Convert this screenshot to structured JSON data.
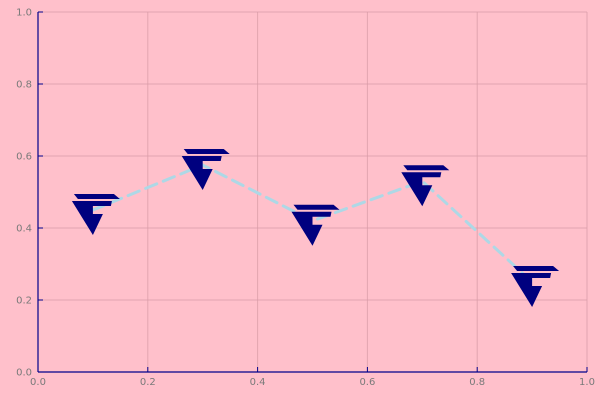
{
  "chart_data": {
    "type": "line",
    "title": "",
    "xlabel": "",
    "ylabel": "",
    "xlim": [
      0,
      1
    ],
    "ylim": [
      0,
      1
    ],
    "x_ticks": [
      "0.0",
      "0.2",
      "0.4",
      "0.6",
      "0.8",
      "1.0"
    ],
    "y_ticks": [
      "0.0",
      "0.2",
      "0.4",
      "0.6",
      "0.8",
      "1.0"
    ],
    "grid": true,
    "legend": "none",
    "series": [
      {
        "x": [
          0.1,
          0.3,
          0.5,
          0.7,
          0.9
        ],
        "y": [
          0.45,
          0.575,
          0.42,
          0.53,
          0.25
        ],
        "line_style": "dashed",
        "line_color": "#add8e6",
        "marker": "custom-glyph-icon",
        "marker_color": "#00007f"
      }
    ],
    "colors": {
      "background": "#ffc0cb",
      "axis": "#00008b",
      "grid": "#d79aa6",
      "tick_label": "#7a7a7a"
    }
  }
}
